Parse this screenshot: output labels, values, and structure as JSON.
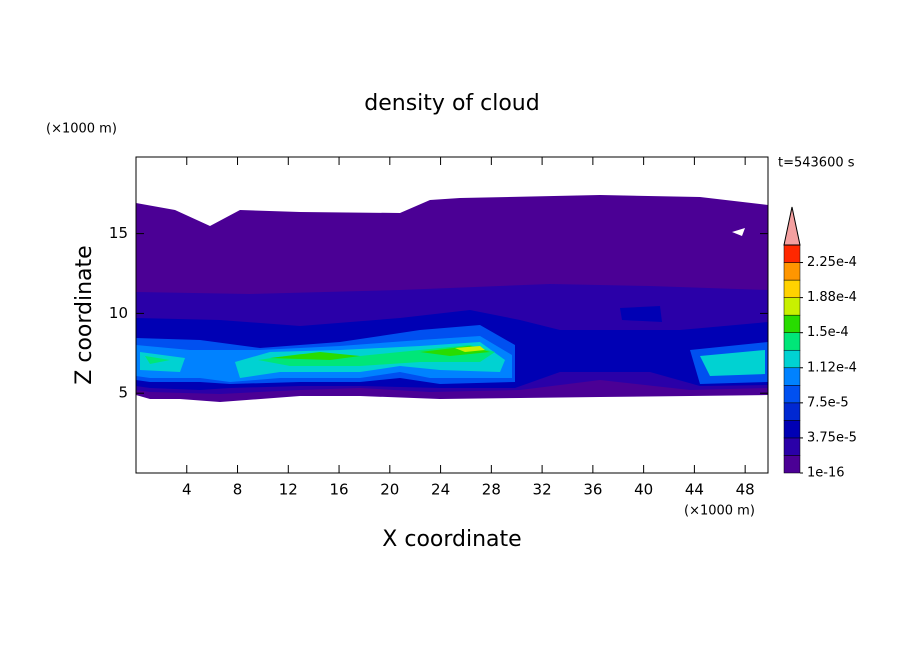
{
  "chart_data": {
    "type": "contour",
    "title": "density of cloud",
    "x_label": "X coordinate",
    "y_label": "Z coordinate",
    "x_unit": "(×1000 m)",
    "y_unit": "(×1000 m)",
    "time_label": "t=543600 s",
    "xlim": [
      0,
      49.8
    ],
    "ylim": [
      0,
      19.8
    ],
    "xticks": [
      4,
      8,
      12,
      16,
      20,
      24,
      28,
      32,
      36,
      40,
      44,
      48
    ],
    "yticks": [
      5,
      10,
      15
    ],
    "colorbar_lim": [
      0,
      0.00024375
    ],
    "colorbar_ticks": [
      {
        "value": 1e-16,
        "label": "1e-16"
      },
      {
        "value": 3.75e-05,
        "label": "3.75e-5"
      },
      {
        "value": 7.5e-05,
        "label": "7.5e-5"
      },
      {
        "value": 0.0001125,
        "label": "1.12e-4"
      },
      {
        "value": 0.00015,
        "label": "1.5e-4"
      },
      {
        "value": 0.0001875,
        "label": "1.88e-4"
      },
      {
        "value": 0.000225,
        "label": "2.25e-4"
      }
    ],
    "colors": [
      "#4b0095",
      "#2a00a8",
      "#0000b4",
      "#0028d2",
      "#0050f0",
      "#0082ff",
      "#00d2d2",
      "#00e678",
      "#28dc00",
      "#c8f000",
      "#ffd200",
      "#ff9600",
      "#ff2800"
    ],
    "extend_color": "#f4a0a0"
  }
}
